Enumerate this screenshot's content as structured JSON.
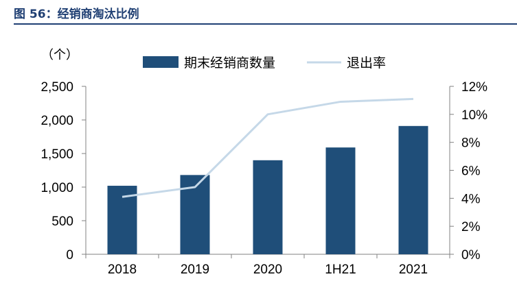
{
  "figure": {
    "title": "图 56：经销商淘汰比例"
  },
  "chart_data": {
    "type": "bar",
    "categories": [
      "2018",
      "2019",
      "2020",
      "1H21",
      "2021"
    ],
    "series": [
      {
        "name": "期末经销商数量",
        "type": "bar",
        "axis": "left",
        "values": [
          1020,
          1180,
          1400,
          1590,
          1910
        ]
      },
      {
        "name": "退出率",
        "type": "line",
        "axis": "right",
        "values": [
          4.1,
          4.8,
          10.0,
          10.9,
          11.1
        ]
      }
    ],
    "left_axis": {
      "unit_label": "（个）",
      "ylim": [
        0,
        2500
      ],
      "ticks": [
        0,
        500,
        1000,
        1500,
        2000,
        2500
      ],
      "tick_labels": [
        "0",
        "500",
        "1,000",
        "1,500",
        "2,000",
        "2,500"
      ]
    },
    "right_axis": {
      "ylim": [
        0,
        12
      ],
      "ticks": [
        0,
        2,
        4,
        6,
        8,
        10,
        12
      ],
      "tick_labels": [
        "0%",
        "2%",
        "4%",
        "6%",
        "8%",
        "10%",
        "12%"
      ]
    },
    "legend": {
      "placement": "top",
      "items": [
        "期末经销商数量",
        "退出率"
      ]
    },
    "colors": {
      "bar": "#1f4e79",
      "line": "#c5d8e8",
      "axis": "#808080",
      "title": "#1f3f73"
    },
    "grid": false
  }
}
